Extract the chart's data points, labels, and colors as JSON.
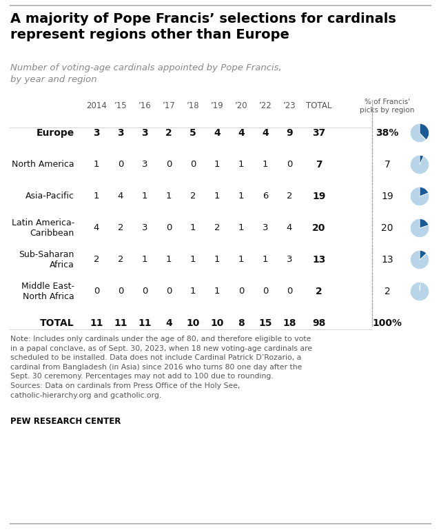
{
  "title": "A majority of Pope Francis’ selections for cardinals\nrepresent regions other than Europe",
  "subtitle": "Number of voting-age cardinals appointed by Pope Francis,\nby year and region",
  "years": [
    "2014",
    "’15",
    "’16",
    "’17",
    "’18",
    "’19",
    "’20",
    "’22",
    "’23",
    "TOTAL"
  ],
  "regions": [
    "Europe",
    "North America",
    "Asia-Pacific",
    "Latin America-\nCaribbean",
    "Sub-Saharan\nAfrica",
    "Middle East-\nNorth Africa",
    "TOTAL"
  ],
  "data": [
    [
      3,
      3,
      3,
      2,
      5,
      4,
      4,
      4,
      9,
      37
    ],
    [
      1,
      0,
      3,
      0,
      0,
      1,
      1,
      1,
      0,
      7
    ],
    [
      1,
      4,
      1,
      1,
      2,
      1,
      1,
      6,
      2,
      19
    ],
    [
      4,
      2,
      3,
      0,
      1,
      2,
      1,
      3,
      4,
      20
    ],
    [
      2,
      2,
      1,
      1,
      1,
      1,
      1,
      1,
      3,
      13
    ],
    [
      0,
      0,
      0,
      0,
      1,
      1,
      0,
      0,
      0,
      2
    ],
    [
      11,
      11,
      11,
      4,
      10,
      10,
      8,
      15,
      18,
      98
    ]
  ],
  "percentages": [
    38,
    7,
    19,
    20,
    13,
    2,
    100
  ],
  "pct_labels": [
    "38%",
    "7",
    "19",
    "20",
    "13",
    "2",
    "100%"
  ],
  "region_bold": [
    true,
    false,
    false,
    false,
    false,
    false,
    true
  ],
  "note": "Note: Includes only cardinals under the age of 80, and therefore eligible to vote\nin a papal conclave, as of Sept. 30, 2023, when 18 new voting-age cardinals are\nscheduled to be installed. Data does not include Cardinal Patrick D’Rozario, a\ncardinal from Bangladesh (in Asia) since 2016 who turns 80 one day after the\nSept. 30 ceremony. Percentages may not add to 100 due to rounding.\nSources: Data on cardinals from Press Office of the Holy See,\ncatholic-hierarchy.org and gcatholic.org.",
  "source": "PEW RESEARCH CENTER",
  "pie_dark": "#1a5a96",
  "pie_light": "#b8d4e8",
  "bg_color": "#ffffff"
}
